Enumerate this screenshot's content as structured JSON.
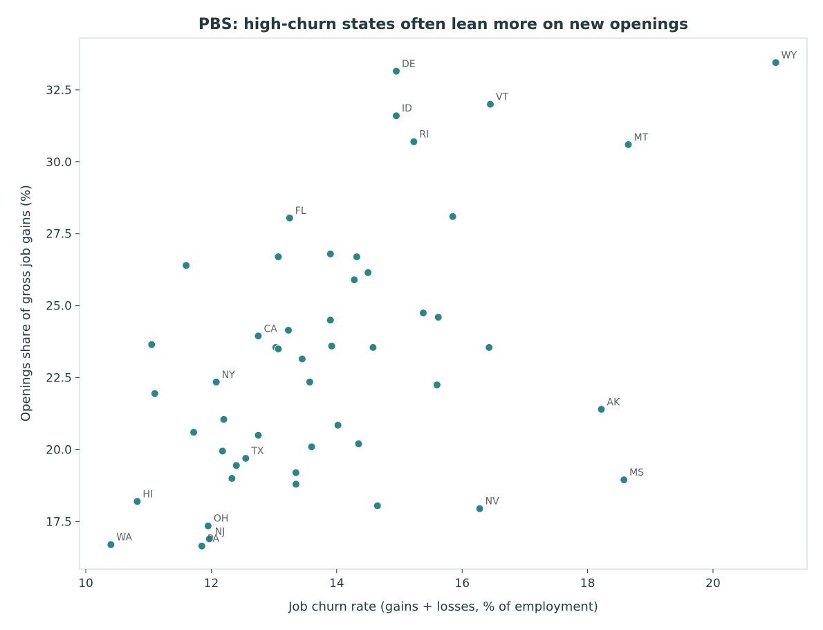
{
  "chart_data": {
    "type": "scatter",
    "title": "PBS: high-churn states often lean more on new openings",
    "xlabel": "Job churn rate (gains + losses, % of employment)",
    "ylabel": "Openings share of gross job gains (%)",
    "xlim": [
      9.9,
      21.5
    ],
    "ylim": [
      15.85,
      34.3
    ],
    "xticks": [
      "10",
      "12",
      "14",
      "16",
      "18",
      "20"
    ],
    "yticks": [
      "17.5",
      "20.0",
      "22.5",
      "25.0",
      "27.5",
      "30.0",
      "32.5"
    ],
    "grid": false,
    "marker_color": "#2b8585",
    "label_color": "#5a6468",
    "points": [
      {
        "x": 21.0,
        "y": 33.45,
        "label": "WY"
      },
      {
        "x": 14.95,
        "y": 33.15,
        "label": "DE"
      },
      {
        "x": 16.45,
        "y": 32.0,
        "label": "VT"
      },
      {
        "x": 14.95,
        "y": 31.6,
        "label": "ID"
      },
      {
        "x": 15.23,
        "y": 30.7,
        "label": "RI"
      },
      {
        "x": 18.65,
        "y": 30.6,
        "label": "MT"
      },
      {
        "x": 13.25,
        "y": 28.05,
        "label": "FL"
      },
      {
        "x": 15.85,
        "y": 28.1,
        "label": ""
      },
      {
        "x": 11.6,
        "y": 26.4,
        "label": ""
      },
      {
        "x": 13.07,
        "y": 26.7,
        "label": ""
      },
      {
        "x": 13.9,
        "y": 26.8,
        "label": ""
      },
      {
        "x": 14.32,
        "y": 26.7,
        "label": ""
      },
      {
        "x": 14.28,
        "y": 25.9,
        "label": ""
      },
      {
        "x": 14.5,
        "y": 26.15,
        "label": ""
      },
      {
        "x": 15.38,
        "y": 24.75,
        "label": ""
      },
      {
        "x": 15.62,
        "y": 24.6,
        "label": ""
      },
      {
        "x": 13.9,
        "y": 24.5,
        "label": ""
      },
      {
        "x": 13.23,
        "y": 24.15,
        "label": ""
      },
      {
        "x": 12.75,
        "y": 23.95,
        "label": "CA"
      },
      {
        "x": 11.05,
        "y": 23.65,
        "label": ""
      },
      {
        "x": 13.03,
        "y": 23.55,
        "label": ""
      },
      {
        "x": 13.07,
        "y": 23.5,
        "label": ""
      },
      {
        "x": 13.92,
        "y": 23.6,
        "label": ""
      },
      {
        "x": 14.58,
        "y": 23.55,
        "label": ""
      },
      {
        "x": 16.43,
        "y": 23.55,
        "label": ""
      },
      {
        "x": 13.45,
        "y": 23.15,
        "label": ""
      },
      {
        "x": 12.08,
        "y": 22.35,
        "label": "NY"
      },
      {
        "x": 13.57,
        "y": 22.35,
        "label": ""
      },
      {
        "x": 15.6,
        "y": 22.25,
        "label": ""
      },
      {
        "x": 11.1,
        "y": 21.95,
        "label": ""
      },
      {
        "x": 18.22,
        "y": 21.4,
        "label": "AK"
      },
      {
        "x": 12.2,
        "y": 21.05,
        "label": ""
      },
      {
        "x": 14.02,
        "y": 20.85,
        "label": ""
      },
      {
        "x": 11.72,
        "y": 20.6,
        "label": ""
      },
      {
        "x": 12.75,
        "y": 20.5,
        "label": ""
      },
      {
        "x": 14.35,
        "y": 20.2,
        "label": ""
      },
      {
        "x": 13.6,
        "y": 20.1,
        "label": ""
      },
      {
        "x": 12.18,
        "y": 19.95,
        "label": ""
      },
      {
        "x": 12.55,
        "y": 19.7,
        "label": "TX"
      },
      {
        "x": 12.4,
        "y": 19.45,
        "label": ""
      },
      {
        "x": 13.35,
        "y": 19.2,
        "label": ""
      },
      {
        "x": 12.33,
        "y": 19.0,
        "label": ""
      },
      {
        "x": 18.58,
        "y": 18.95,
        "label": "MS"
      },
      {
        "x": 13.35,
        "y": 18.8,
        "label": ""
      },
      {
        "x": 10.82,
        "y": 18.2,
        "label": "HI"
      },
      {
        "x": 14.65,
        "y": 18.05,
        "label": ""
      },
      {
        "x": 16.28,
        "y": 17.95,
        "label": "NV"
      },
      {
        "x": 11.95,
        "y": 17.35,
        "label": "OH"
      },
      {
        "x": 11.97,
        "y": 16.9,
        "label": "NJ"
      },
      {
        "x": 10.4,
        "y": 16.7,
        "label": "WA"
      },
      {
        "x": 11.85,
        "y": 16.65,
        "label": "PA"
      }
    ]
  }
}
